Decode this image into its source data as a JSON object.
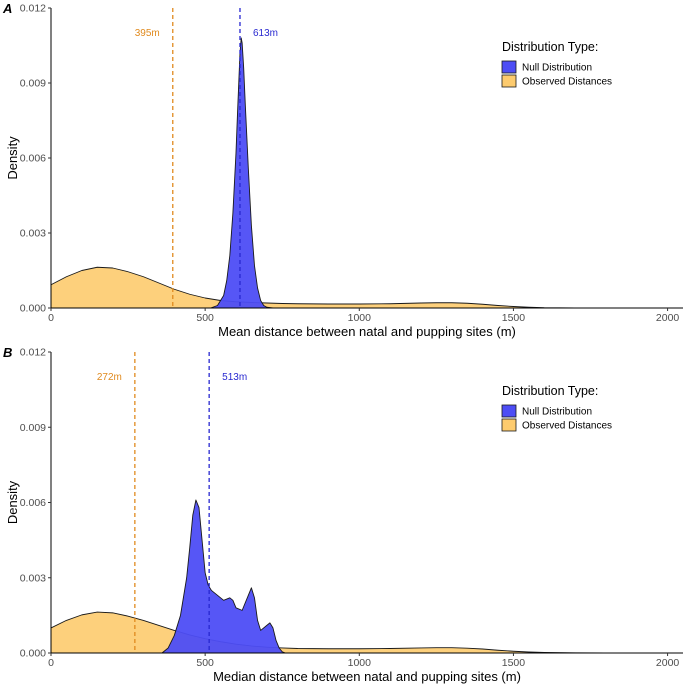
{
  "colors": {
    "null_fill": "#4d4df5",
    "observed_fill": "#fdcb6e",
    "null_line": "#2828d0",
    "observed_line": "#e08a1e"
  },
  "legend": {
    "title": "Distribution Type:",
    "items": [
      "Null Distribution",
      "Observed Distances"
    ]
  },
  "chart_data": [
    {
      "type": "area",
      "panel_label": "A",
      "xlabel": "Mean distance between natal and pupping sites (m)",
      "ylabel": "Density",
      "xlim": [
        0,
        2050
      ],
      "ylim": [
        0,
        0.012
      ],
      "x_ticks": [
        0,
        500,
        1000,
        1500,
        2000
      ],
      "y_ticks": [
        0.0,
        0.003,
        0.006,
        0.009,
        0.012
      ],
      "y_tick_labels": [
        "0.000",
        "0.003",
        "0.006",
        "0.009",
        "0.012"
      ],
      "grid": false,
      "legend_position": "top-right",
      "annotations": [
        {
          "text": "395m",
          "x": 395,
          "series": "Observed Distances"
        },
        {
          "text": "613m",
          "x": 613,
          "series": "Null Distribution"
        }
      ],
      "series": [
        {
          "name": "Observed Distances",
          "x": [
            0,
            50,
            100,
            150,
            200,
            250,
            300,
            350,
            400,
            450,
            500,
            550,
            600,
            650,
            700,
            750,
            800,
            900,
            1000,
            1100,
            1200,
            1250,
            1300,
            1350,
            1400,
            1450,
            1500,
            1550,
            1600,
            1700,
            1800
          ],
          "y": [
            0.00093,
            0.00125,
            0.0015,
            0.00163,
            0.0016,
            0.00145,
            0.00125,
            0.001,
            0.00075,
            0.00055,
            0.0004,
            0.0003,
            0.00025,
            0.00022,
            0.0002,
            0.00018,
            0.00017,
            0.00016,
            0.00016,
            0.00017,
            0.0002,
            0.00021,
            0.00021,
            0.00019,
            0.00015,
            0.0001,
            6e-05,
            3e-05,
            1e-05,
            3e-06,
            1e-06
          ]
        },
        {
          "name": "Null Distribution",
          "x": [
            520,
            540,
            560,
            570,
            580,
            590,
            600,
            605,
            610,
            613,
            617,
            620,
            625,
            630,
            640,
            650,
            660,
            670,
            680,
            690,
            700,
            720
          ],
          "y": [
            1e-05,
            0.0001,
            0.0005,
            0.0011,
            0.0021,
            0.0038,
            0.0062,
            0.0078,
            0.0093,
            0.0102,
            0.0108,
            0.0106,
            0.0096,
            0.0082,
            0.0056,
            0.0033,
            0.0017,
            0.0008,
            0.0003,
            0.0001,
            3e-05,
            0.0
          ]
        }
      ]
    },
    {
      "type": "area",
      "panel_label": "B",
      "xlabel": "Median distance between natal and pupping sites (m)",
      "ylabel": "Density",
      "xlim": [
        0,
        2050
      ],
      "ylim": [
        0,
        0.012
      ],
      "x_ticks": [
        0,
        500,
        1000,
        1500,
        2000
      ],
      "y_ticks": [
        0.0,
        0.003,
        0.006,
        0.009,
        0.012
      ],
      "y_tick_labels": [
        "0.000",
        "0.003",
        "0.006",
        "0.009",
        "0.012"
      ],
      "grid": false,
      "legend_position": "top-right",
      "annotations": [
        {
          "text": "272m",
          "x": 272,
          "series": "Observed Distances"
        },
        {
          "text": "513m",
          "x": 513,
          "series": "Null Distribution"
        }
      ],
      "series": [
        {
          "name": "Observed Distances",
          "x": [
            0,
            50,
            100,
            150,
            200,
            250,
            300,
            350,
            400,
            450,
            500,
            550,
            600,
            650,
            700,
            750,
            800,
            900,
            1000,
            1100,
            1200,
            1250,
            1300,
            1350,
            1400,
            1450,
            1500,
            1550,
            1600,
            1700,
            1800
          ],
          "y": [
            0.001,
            0.0013,
            0.00152,
            0.00163,
            0.0016,
            0.00147,
            0.0013,
            0.0011,
            0.0009,
            0.00072,
            0.00057,
            0.00045,
            0.00035,
            0.00028,
            0.00023,
            0.0002,
            0.00018,
            0.00017,
            0.00017,
            0.00018,
            0.0002,
            0.00021,
            0.00021,
            0.00019,
            0.00016,
            0.00011,
            7e-05,
            4e-05,
            2e-05,
            5e-06,
            1e-06
          ]
        },
        {
          "name": "Null Distribution",
          "x": [
            360,
            380,
            400,
            420,
            440,
            450,
            460,
            470,
            480,
            490,
            500,
            510,
            520,
            530,
            540,
            560,
            580,
            590,
            600,
            620,
            640,
            650,
            660,
            670,
            680,
            700,
            710,
            720,
            730,
            740,
            750,
            760
          ],
          "y": [
            0.0,
            0.0002,
            0.0007,
            0.0015,
            0.003,
            0.0042,
            0.0055,
            0.0061,
            0.0058,
            0.0045,
            0.0032,
            0.0027,
            0.0025,
            0.0024,
            0.0023,
            0.0021,
            0.0022,
            0.0021,
            0.0018,
            0.0017,
            0.0023,
            0.0026,
            0.0022,
            0.0013,
            0.0009,
            0.0011,
            0.0012,
            0.001,
            0.0005,
            0.0002,
            5e-05,
            0.0
          ]
        }
      ]
    }
  ]
}
